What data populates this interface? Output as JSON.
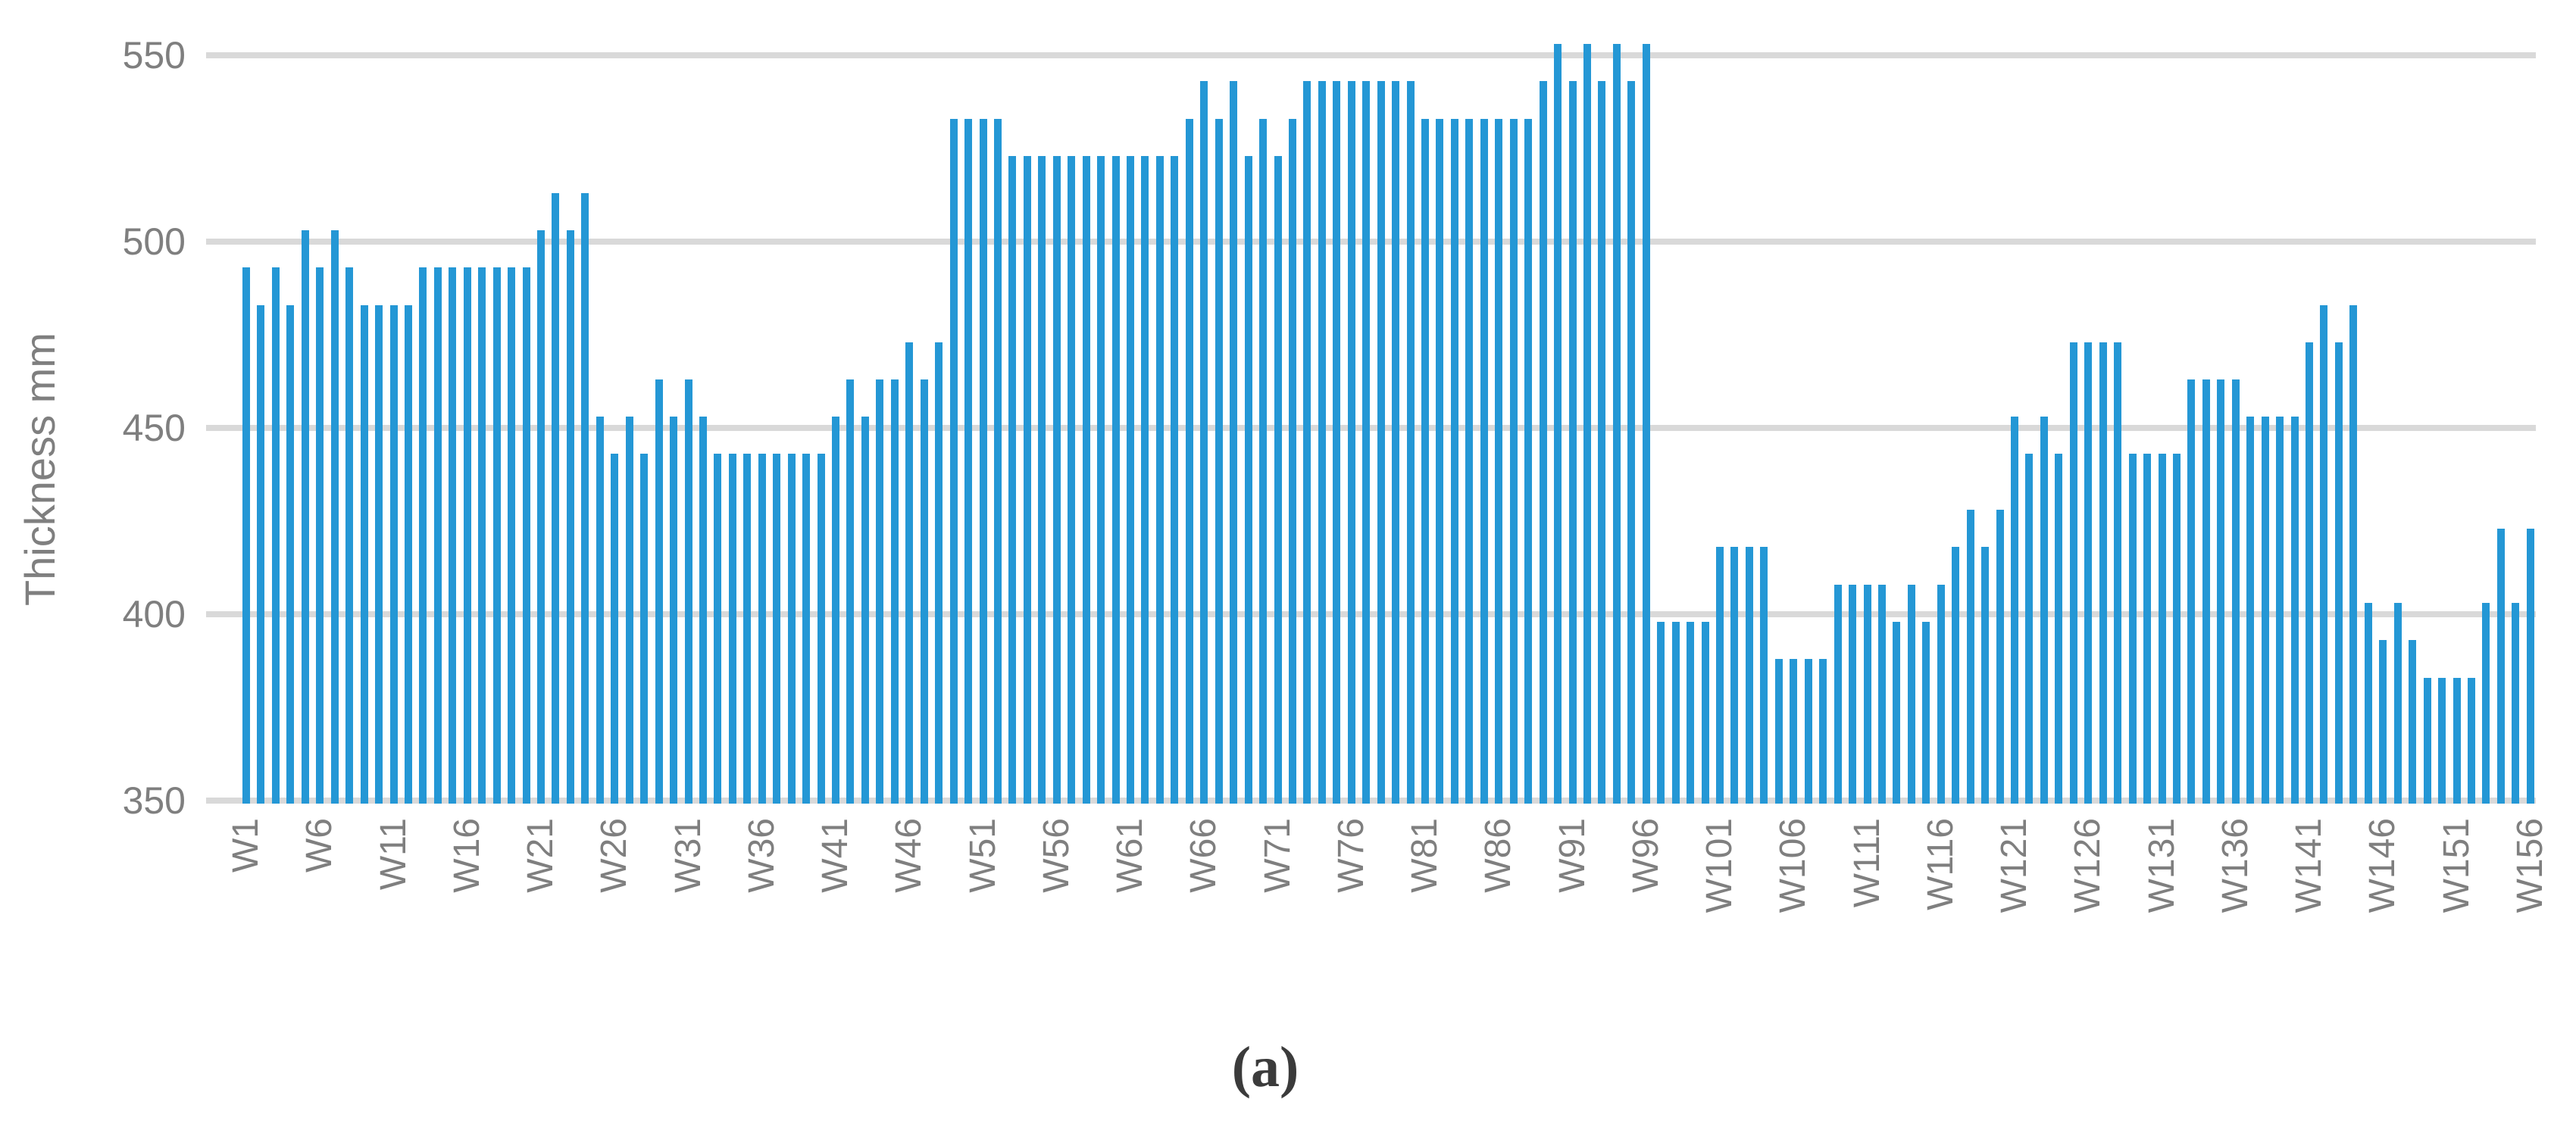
{
  "figure": {
    "caption": "(a)"
  },
  "colors": {
    "bar": "#2497d5",
    "gridline": "#d9d9d9",
    "axis_text": "#7f7f7f",
    "caption_text": "#3b3b3b",
    "background": "#ffffff"
  },
  "chart_data": {
    "type": "bar",
    "title": "",
    "xlabel": "",
    "ylabel": "Thickness mm",
    "ylim": [
      350,
      550
    ],
    "yticks": [
      350,
      400,
      450,
      500,
      550
    ],
    "grid": true,
    "legend_position": "none",
    "x_label_prefix": "W",
    "xtick_every": 5,
    "xticks": [
      "W1",
      "W6",
      "W11",
      "W16",
      "W21",
      "W26",
      "W31",
      "W36",
      "W41",
      "W46",
      "W51",
      "W56",
      "W61",
      "W66",
      "W71",
      "W76",
      "W81",
      "W86",
      "W91",
      "W96",
      "W101",
      "W106",
      "W111",
      "W116",
      "W121",
      "W126",
      "W131",
      "W136",
      "W141",
      "W146",
      "W151",
      "W156"
    ],
    "values": [
      493,
      483,
      493,
      483,
      503,
      493,
      503,
      493,
      483,
      483,
      483,
      483,
      493,
      493,
      493,
      493,
      493,
      493,
      493,
      493,
      503,
      513,
      503,
      513,
      453,
      443,
      453,
      443,
      463,
      453,
      463,
      453,
      443,
      443,
      443,
      443,
      443,
      443,
      443,
      443,
      453,
      463,
      453,
      463,
      463,
      473,
      463,
      473,
      533,
      533,
      533,
      533,
      523,
      523,
      523,
      523,
      523,
      523,
      523,
      523,
      523,
      523,
      523,
      523,
      533,
      543,
      533,
      543,
      523,
      533,
      523,
      533,
      543,
      543,
      543,
      543,
      543,
      543,
      543,
      543,
      533,
      533,
      533,
      533,
      533,
      533,
      533,
      533,
      543,
      553,
      543,
      553,
      543,
      553,
      543,
      553,
      398,
      398,
      398,
      398,
      418,
      418,
      418,
      418,
      388,
      388,
      388,
      388,
      408,
      408,
      408,
      408,
      398,
      408,
      398,
      408,
      418,
      428,
      418,
      428,
      453,
      443,
      453,
      443,
      473,
      473,
      473,
      473,
      443,
      443,
      443,
      443,
      463,
      463,
      463,
      463,
      453,
      453,
      453,
      453,
      473,
      483,
      473,
      483,
      403,
      393,
      403,
      393,
      383,
      383,
      383,
      383,
      403,
      423,
      403,
      423
    ]
  }
}
